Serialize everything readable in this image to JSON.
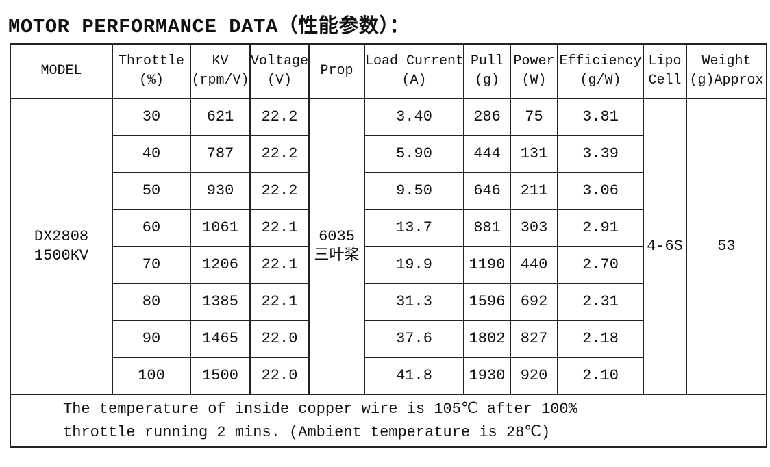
{
  "title": "MOTOR PERFORMANCE DATA（性能参数）：",
  "table": {
    "header": [
      [
        "MODEL"
      ],
      [
        "Throttle",
        "(%)"
      ],
      [
        "KV",
        "(rpm/V)"
      ],
      [
        "Voltage",
        "(V)"
      ],
      [
        "Prop"
      ],
      [
        "Load Current",
        "(A)"
      ],
      [
        "Pull",
        "(g)"
      ],
      [
        "Power",
        "(W)"
      ],
      [
        "Efficiency",
        "(g/W)"
      ],
      [
        "Lipo",
        "Cell"
      ],
      [
        "Weight",
        "(g)Approx"
      ]
    ],
    "model": [
      "DX2808",
      "1500KV"
    ],
    "prop": [
      "6035",
      "三叶桨"
    ],
    "lipo_cell": "4-6S",
    "weight": "53",
    "rows": [
      [
        "30",
        "621",
        "22.2",
        "3.40",
        "286",
        "75",
        "3.81"
      ],
      [
        "40",
        "787",
        "22.2",
        "5.90",
        "444",
        "131",
        "3.39"
      ],
      [
        "50",
        "930",
        "22.2",
        "9.50",
        "646",
        "211",
        "3.06"
      ],
      [
        "60",
        "1061",
        "22.1",
        "13.7",
        "881",
        "303",
        "2.91"
      ],
      [
        "70",
        "1206",
        "22.1",
        "19.9",
        "1190",
        "440",
        "2.70"
      ],
      [
        "80",
        "1385",
        "22.1",
        "31.3",
        "1596",
        "692",
        "2.31"
      ],
      [
        "90",
        "1465",
        "22.0",
        "37.6",
        "1802",
        "827",
        "2.18"
      ],
      [
        "100",
        "1500",
        "22.0",
        "41.8",
        "1930",
        "920",
        "2.10"
      ]
    ],
    "note": [
      "The temperature of inside copper wire is 105℃ after 100%",
      "throttle running 2 mins. (Ambient temperature is 28℃)"
    ]
  }
}
